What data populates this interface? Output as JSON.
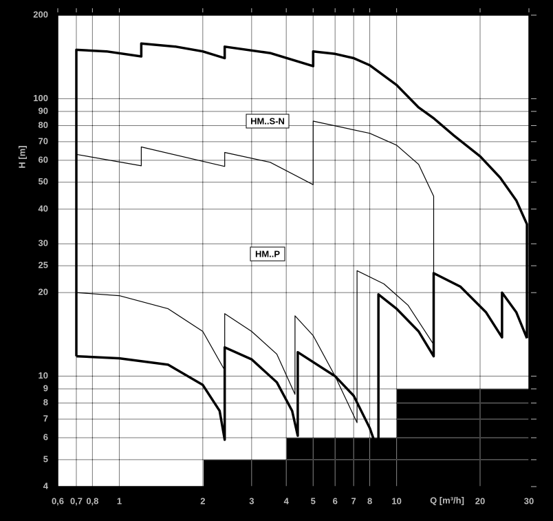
{
  "chart_data": {
    "type": "line",
    "x_label": "Q [m³/h]",
    "y_label": "H [m]",
    "log_x": true,
    "log_y": true,
    "grid": true,
    "xlim": [
      0.6,
      30
    ],
    "ylim": [
      4,
      200
    ],
    "xticks": [
      {
        "value": 0.6,
        "label": "0,6"
      },
      {
        "value": 0.7,
        "label": "0,7"
      },
      {
        "value": 0.8,
        "label": "0,8"
      },
      1,
      2,
      3,
      4,
      5,
      6,
      7,
      8,
      10,
      20,
      30
    ],
    "yticks": [
      4,
      5,
      6,
      7,
      8,
      9,
      10,
      20,
      25,
      30,
      40,
      50,
      60,
      70,
      80,
      90,
      100,
      200
    ],
    "annotations": [
      "HM..S-N",
      "HM..P"
    ],
    "series": [
      {
        "color": "#000000",
        "line_weight": "bold",
        "x": [
          0.7,
          0.7,
          0.9,
          1.2,
          1.2,
          1.6,
          2.0,
          2.4,
          2.4,
          3.5,
          5,
          5,
          6,
          7,
          8,
          10,
          12,
          13.6,
          16,
          20,
          23.6,
          27,
          29.5,
          29.5
        ],
        "values": [
          11.8,
          150,
          148,
          142,
          158,
          154,
          148,
          140,
          154,
          146,
          131,
          148,
          145,
          140,
          132,
          112,
          93,
          85,
          74,
          62,
          52,
          43,
          35.3,
          13.7
        ]
      },
      {
        "color": "#000000",
        "line_weight": "bold",
        "x": [
          0.7,
          1,
          1.5,
          2,
          2.3,
          2.4,
          2.4,
          3,
          3.7,
          4.2,
          4.4,
          4.4,
          6,
          7,
          8,
          8.6,
          8.6,
          10,
          12,
          13.6,
          13.6,
          17,
          21,
          24,
          24,
          27,
          29.5
        ],
        "values": [
          11.8,
          11.6,
          11.0,
          9.3,
          7.5,
          5.9,
          12.7,
          11.5,
          9.5,
          7.5,
          6.1,
          12.2,
          10,
          8.5,
          6.5,
          5.3,
          19.7,
          17.5,
          14.5,
          11.8,
          23.5,
          21,
          17,
          13.8,
          20,
          17,
          13.7
        ]
      },
      {
        "color": "#000000",
        "line_weight": "normal",
        "x": [
          0.7,
          1.2,
          1.2,
          2.4,
          2.4,
          3.5,
          5,
          5,
          8,
          10,
          12,
          13.6,
          13.6
        ],
        "values": [
          63,
          57.3,
          67,
          57,
          64,
          59,
          49,
          83,
          75,
          68,
          58,
          44.5,
          12.7
        ]
      },
      {
        "color": "#000000",
        "line_weight": "normal",
        "x": [
          0.7,
          1,
          1.5,
          2,
          2.4,
          2.4,
          3,
          3.7,
          4.3,
          4.3,
          5,
          6,
          7.2,
          7.2,
          9,
          11,
          13.6
        ],
        "values": [
          20,
          19.5,
          17.5,
          14.5,
          10.5,
          16.8,
          14.5,
          12,
          8.6,
          16.5,
          14,
          10,
          6.8,
          24,
          21.5,
          18,
          13
        ]
      }
    ]
  }
}
